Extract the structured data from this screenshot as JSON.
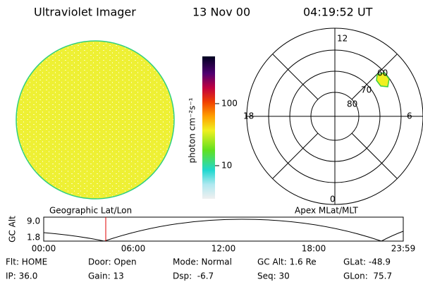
{
  "header": {
    "title": "Ultraviolet Imager",
    "date": "13 Nov 00",
    "time": "04:19:52 UT"
  },
  "colorbar": {
    "label": "photon cm⁻²s⁻¹",
    "ticks": [
      "100",
      "10"
    ]
  },
  "polar": {
    "mlt_labels": [
      "12",
      "18",
      "6",
      "0"
    ],
    "mlat_labels": [
      "60",
      "70",
      "80"
    ]
  },
  "timeline": {
    "left_label": "Geographic Lat/Lon",
    "right_label": "Apex MLat/MLT",
    "y_label": "GC Alt",
    "y_ticks": [
      "9.0",
      "1.8"
    ],
    "x_ticks": [
      "00:00",
      "06:00",
      "12:00",
      "18:00",
      "23:59"
    ]
  },
  "info": {
    "rows": [
      [
        "Flt: HOME",
        "Door: Open",
        "Mode: Normal",
        "GC Alt: 1.6 Re",
        "GLat: -48.9"
      ],
      [
        "IP: 36.0",
        "Gain: 13",
        "Dsp:  -6.7",
        "Seq: 30",
        "GLon:  75.7"
      ]
    ]
  }
}
